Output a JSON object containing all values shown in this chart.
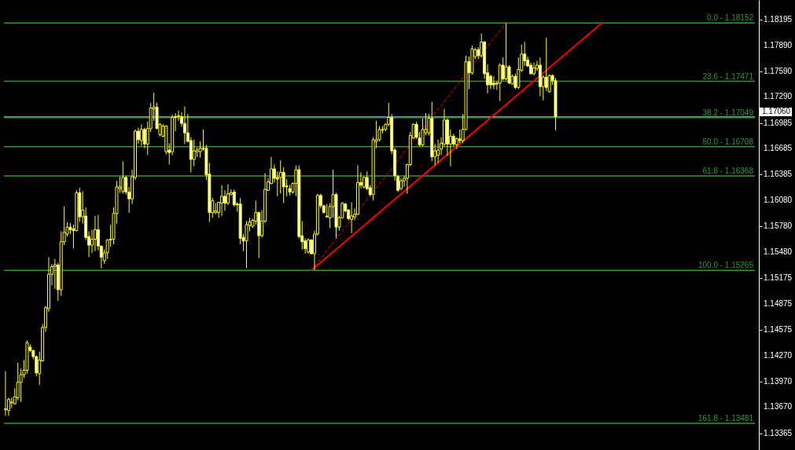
{
  "chart_data": {
    "type": "candlestick",
    "categories": [
      null,
      null,
      null,
      null,
      null,
      null,
      null,
      null,
      null,
      null,
      null,
      null,
      null,
      null,
      null,
      null,
      null,
      null,
      null,
      null,
      null,
      null,
      null,
      null,
      null,
      null,
      null,
      null,
      null,
      null,
      null,
      null,
      null,
      null,
      null,
      null,
      null,
      null,
      null,
      null,
      null,
      null,
      null,
      null,
      null,
      null,
      null,
      null,
      null,
      null,
      null,
      null,
      null,
      null,
      null,
      null,
      null,
      null,
      null,
      null,
      null,
      null,
      null,
      null,
      null,
      null,
      null,
      null,
      null,
      null,
      null,
      null,
      null,
      null,
      null,
      null,
      null,
      null,
      null,
      null,
      null,
      null,
      null,
      null,
      null,
      null,
      null,
      null,
      null,
      null,
      null,
      null,
      null,
      null,
      null,
      null,
      null,
      null,
      null,
      null,
      null,
      null,
      null,
      null,
      null,
      null,
      null,
      null,
      null,
      null,
      null,
      null,
      null,
      null,
      null,
      null,
      null,
      null,
      null,
      null,
      null,
      null,
      null,
      null,
      null,
      null,
      null,
      null,
      null,
      null,
      null,
      null,
      null,
      null,
      null,
      null,
      null,
      null,
      null,
      null,
      null,
      null,
      null,
      null,
      null,
      null,
      null,
      null,
      null,
      null,
      null,
      null,
      null,
      null,
      null,
      null,
      null,
      null,
      null,
      null,
      null,
      null,
      null,
      null,
      null,
      null,
      null,
      null,
      null,
      null,
      null,
      null,
      null,
      null,
      null,
      null,
      null,
      null,
      null,
      null,
      null,
      null,
      null,
      null,
      null,
      null,
      null,
      null,
      null,
      null,
      null,
      null,
      null,
      null,
      null,
      null,
      null,
      null,
      null,
      null,
      null,
      null,
      null,
      null,
      null,
      null,
      null,
      null,
      null,
      null,
      null,
      null,
      null,
      null,
      null,
      null,
      null,
      null,
      null,
      null,
      null,
      null,
      null,
      null,
      null,
      null,
      null,
      null,
      null,
      null,
      null,
      null,
      null,
      null,
      null,
      null,
      null,
      null,
      null,
      null,
      null,
      null,
      null
    ],
    "ohlc": [
      [
        1.1364,
        1.1409,
        1.1357,
        1.1365
      ],
      [
        1.1363,
        1.1378,
        1.1357,
        1.1376
      ],
      [
        1.1372,
        1.1378,
        1.1366,
        1.1373
      ],
      [
        1.1371,
        1.1389,
        1.137,
        1.1379
      ],
      [
        1.1378,
        1.1419,
        1.1375,
        1.1396
      ],
      [
        1.1396,
        1.1412,
        1.1373,
        1.1405
      ],
      [
        1.1405,
        1.1422,
        1.1401,
        1.141
      ],
      [
        1.141,
        1.1445,
        1.1406,
        1.1442
      ],
      [
        1.1437,
        1.144,
        1.1431,
        1.1433
      ],
      [
        1.1433,
        1.1434,
        1.1423,
        1.1426
      ],
      [
        1.1426,
        1.1427,
        1.1403,
        1.1407
      ],
      [
        1.1406,
        1.1432,
        1.1393,
        1.1422
      ],
      [
        1.1421,
        1.1464,
        1.142,
        1.146
      ],
      [
        1.146,
        1.1485,
        1.1455,
        1.1483
      ],
      [
        1.1482,
        1.1542,
        1.1478,
        1.1522
      ],
      [
        1.1522,
        1.1534,
        1.1509,
        1.1531
      ],
      [
        1.1531,
        1.154,
        1.1505,
        1.1533
      ],
      [
        1.1533,
        1.1535,
        1.1491,
        1.1504
      ],
      [
        1.1504,
        1.1572,
        1.1497,
        1.156
      ],
      [
        1.156,
        1.1601,
        1.1556,
        1.1571
      ],
      [
        1.1569,
        1.1583,
        1.1566,
        1.1577
      ],
      [
        1.1577,
        1.1582,
        1.1569,
        1.1574
      ],
      [
        1.1575,
        1.158,
        1.1552,
        1.1573
      ],
      [
        1.1573,
        1.162,
        1.1572,
        1.1617
      ],
      [
        1.1617,
        1.1623,
        1.1583,
        1.1589
      ],
      [
        1.1589,
        1.1619,
        1.1581,
        1.1597
      ],
      [
        1.159,
        1.16,
        1.1562,
        1.1565
      ],
      [
        1.1566,
        1.1572,
        1.1542,
        1.1556
      ],
      [
        1.1556,
        1.1574,
        1.1547,
        1.1563
      ],
      [
        1.1563,
        1.159,
        1.1549,
        1.1574
      ],
      [
        1.1574,
        1.1591,
        1.155,
        1.1555
      ],
      [
        1.1555,
        1.1555,
        1.1529,
        1.1542
      ],
      [
        1.1538,
        1.1551,
        1.1534,
        1.1547
      ],
      [
        1.1547,
        1.1563,
        1.154,
        1.1562
      ],
      [
        1.1562,
        1.158,
        1.1554,
        1.1563
      ],
      [
        1.1563,
        1.16,
        1.1557,
        1.1593
      ],
      [
        1.1593,
        1.1631,
        1.1581,
        1.1624
      ],
      [
        1.1622,
        1.1636,
        1.1617,
        1.1624
      ],
      [
        1.1619,
        1.1654,
        1.1616,
        1.1635
      ],
      [
        1.1635,
        1.1637,
        1.1615,
        1.1618
      ],
      [
        1.1618,
        1.1624,
        1.1594,
        1.161
      ],
      [
        1.161,
        1.1644,
        1.1604,
        1.1636
      ],
      [
        1.1635,
        1.1691,
        1.1632,
        1.1689
      ],
      [
        1.1689,
        1.1693,
        1.1674,
        1.1679
      ],
      [
        1.1678,
        1.1697,
        1.1672,
        1.1691
      ],
      [
        1.1691,
        1.1693,
        1.1669,
        1.1674
      ],
      [
        1.1674,
        1.17,
        1.1661,
        1.1692
      ],
      [
        1.1692,
        1.1722,
        1.1688,
        1.1716
      ],
      [
        1.1715,
        1.1734,
        1.1701,
        1.1717
      ],
      [
        1.1717,
        1.1722,
        1.1691,
        1.1692
      ],
      [
        1.1685,
        1.1698,
        1.1683,
        1.1697
      ],
      [
        1.1683,
        1.1697,
        1.1682,
        1.1695
      ],
      [
        1.1665,
        1.1696,
        1.1662,
        1.1695
      ],
      [
        1.1667,
        1.1675,
        1.165,
        1.1664
      ],
      [
        1.1665,
        1.1708,
        1.1661,
        1.1705
      ],
      [
        1.1705,
        1.171,
        1.1689,
        1.1706
      ],
      [
        1.1706,
        1.1713,
        1.1701,
        1.1707
      ],
      [
        1.1706,
        1.1711,
        1.1694,
        1.1698
      ],
      [
        1.1698,
        1.1718,
        1.1674,
        1.1687
      ],
      [
        1.1687,
        1.1709,
        1.1676,
        1.1677
      ],
      [
        1.1678,
        1.1682,
        1.1641,
        1.1656
      ],
      [
        1.1656,
        1.1679,
        1.1648,
        1.1666
      ],
      [
        1.1665,
        1.167,
        1.1659,
        1.1667
      ],
      [
        1.1665,
        1.1677,
        1.1658,
        1.1669
      ],
      [
        1.1669,
        1.1691,
        1.1666,
        1.1668
      ],
      [
        1.1669,
        1.1673,
        1.1632,
        1.1638
      ],
      [
        1.1639,
        1.1652,
        1.1583,
        1.1594
      ],
      [
        1.1594,
        1.1611,
        1.1588,
        1.1608
      ],
      [
        1.1594,
        1.1605,
        1.1592,
        1.1596
      ],
      [
        1.1594,
        1.1606,
        1.1588,
        1.1606
      ],
      [
        1.1605,
        1.1626,
        1.159,
        1.1613
      ],
      [
        1.1613,
        1.162,
        1.1596,
        1.1605
      ],
      [
        1.1605,
        1.1627,
        1.1603,
        1.1616
      ],
      [
        1.1615,
        1.1621,
        1.1614,
        1.1617
      ],
      [
        1.1618,
        1.1621,
        1.1601,
        1.1603
      ],
      [
        1.1604,
        1.1606,
        1.1595,
        1.1603
      ],
      [
        1.1604,
        1.1611,
        1.1557,
        1.1564
      ],
      [
        1.1565,
        1.1569,
        1.1549,
        1.1561
      ],
      [
        1.1561,
        1.1584,
        1.1529,
        1.158
      ],
      [
        1.1579,
        1.1588,
        1.1572,
        1.1583
      ],
      [
        1.1578,
        1.1587,
        1.1576,
        1.1585
      ],
      [
        1.1584,
        1.1608,
        1.158,
        1.1594
      ],
      [
        1.1594,
        1.1595,
        1.1541,
        1.1567
      ],
      [
        1.1567,
        1.1597,
        1.1565,
        1.1584
      ],
      [
        1.1584,
        1.164,
        1.1582,
        1.1621
      ],
      [
        1.162,
        1.1634,
        1.1619,
        1.163
      ],
      [
        1.1628,
        1.1659,
        1.1627,
        1.1645
      ],
      [
        1.1645,
        1.165,
        1.1629,
        1.1634
      ],
      [
        1.1635,
        1.1642,
        1.1613,
        1.1633
      ],
      [
        1.1635,
        1.1655,
        1.1616,
        1.1641
      ],
      [
        1.1641,
        1.1647,
        1.1605,
        1.1624
      ],
      [
        1.1625,
        1.1633,
        1.1613,
        1.1624
      ],
      [
        1.1622,
        1.1626,
        1.1614,
        1.1618
      ],
      [
        1.1618,
        1.1629,
        1.1616,
        1.1628
      ],
      [
        1.1628,
        1.1649,
        1.1613,
        1.1644
      ],
      [
        1.1644,
        1.1649,
        1.1564,
        1.1566
      ],
      [
        1.1567,
        1.1584,
        1.1551,
        1.156
      ],
      [
        1.1561,
        1.1564,
        1.1546,
        1.1552
      ],
      [
        1.1548,
        1.1564,
        1.1546,
        1.1562
      ],
      [
        1.1562,
        1.1563,
        1.1545,
        1.1546
      ],
      [
        1.1546,
        1.1573,
        1.1527,
        1.1569
      ],
      [
        1.1569,
        1.1616,
        1.1567,
        1.1614
      ],
      [
        1.1614,
        1.1616,
        1.1599,
        1.1602
      ],
      [
        1.1602,
        1.1603,
        1.1593,
        1.1594
      ],
      [
        1.159,
        1.1604,
        1.1589,
        1.1589
      ],
      [
        1.1588,
        1.1605,
        1.1576,
        1.1601
      ],
      [
        1.1601,
        1.1644,
        1.1588,
        1.1615
      ],
      [
        1.1615,
        1.1617,
        1.1564,
        1.1577
      ],
      [
        1.1577,
        1.159,
        1.1573,
        1.1588
      ],
      [
        1.1588,
        1.1606,
        1.1587,
        1.1605
      ],
      [
        1.1604,
        1.1605,
        1.1594,
        1.1596
      ],
      [
        1.1597,
        1.1598,
        1.1585,
        1.1587
      ],
      [
        1.1586,
        1.1606,
        1.157,
        1.159
      ],
      [
        1.1589,
        1.1599,
        1.1585,
        1.1592
      ],
      [
        1.1592,
        1.1649,
        1.1591,
        1.1629
      ],
      [
        1.1629,
        1.1641,
        1.1622,
        1.1626
      ],
      [
        1.1624,
        1.1636,
        1.1622,
        1.1635
      ],
      [
        1.1635,
        1.1642,
        1.162,
        1.1622
      ],
      [
        1.1623,
        1.1626,
        1.1613,
        1.1615
      ],
      [
        1.1615,
        1.1682,
        1.1608,
        1.1679
      ],
      [
        1.1677,
        1.1701,
        1.1669,
        1.1679
      ],
      [
        1.1679,
        1.1695,
        1.1677,
        1.1691
      ],
      [
        1.169,
        1.1695,
        1.1686,
        1.1691
      ],
      [
        1.1691,
        1.1698,
        1.1689,
        1.1697
      ],
      [
        1.1697,
        1.1722,
        1.1695,
        1.1705
      ],
      [
        1.1705,
        1.1709,
        1.1662,
        1.1666
      ],
      [
        1.1667,
        1.1669,
        1.1631,
        1.1637
      ],
      [
        1.1636,
        1.1638,
        1.1618,
        1.162
      ],
      [
        1.1622,
        1.1634,
        1.162,
        1.1631
      ],
      [
        1.1631,
        1.1637,
        1.1624,
        1.1634
      ],
      [
        1.1634,
        1.1651,
        1.1616,
        1.165
      ],
      [
        1.165,
        1.1688,
        1.1648,
        1.1684
      ],
      [
        1.1681,
        1.1698,
        1.168,
        1.1697
      ],
      [
        1.1697,
        1.17,
        1.168,
        1.1682
      ],
      [
        1.1681,
        1.1688,
        1.1671,
        1.1673
      ],
      [
        1.1673,
        1.1704,
        1.1671,
        1.1691
      ],
      [
        1.1687,
        1.171,
        1.1684,
        1.1691
      ],
      [
        1.1687,
        1.1709,
        1.1684,
        1.1704
      ],
      [
        1.1704,
        1.1723,
        1.1654,
        1.1659
      ],
      [
        1.1659,
        1.1674,
        1.1649,
        1.1666
      ],
      [
        1.1661,
        1.1679,
        1.1652,
        1.1667
      ],
      [
        1.1668,
        1.1682,
        1.1661,
        1.1675
      ],
      [
        1.1674,
        1.1715,
        1.1671,
        1.1702
      ],
      [
        1.1702,
        1.1704,
        1.166,
        1.1674
      ],
      [
        1.1674,
        1.1691,
        1.1648,
        1.1683
      ],
      [
        1.1683,
        1.1686,
        1.1671,
        1.1674
      ],
      [
        1.1673,
        1.1682,
        1.1668,
        1.168
      ],
      [
        1.168,
        1.1691,
        1.1675,
        1.1678
      ],
      [
        1.1678,
        1.1709,
        1.1675,
        1.1691
      ],
      [
        1.1691,
        1.1777,
        1.169,
        1.177
      ],
      [
        1.177,
        1.1776,
        1.1738,
        1.1757
      ],
      [
        1.1757,
        1.1789,
        1.1755,
        1.1785
      ],
      [
        1.1776,
        1.1786,
        1.1773,
        1.1784
      ],
      [
        1.1784,
        1.1787,
        1.1773,
        1.1777
      ],
      [
        1.1777,
        1.1803,
        1.1775,
        1.1793
      ],
      [
        1.1793,
        1.1794,
        1.175,
        1.1756
      ],
      [
        1.1757,
        1.1767,
        1.1733,
        1.1743
      ],
      [
        1.1753,
        1.1755,
        1.1738,
        1.1743
      ],
      [
        1.1745,
        1.1753,
        1.1738,
        1.1743
      ],
      [
        1.1745,
        1.1747,
        1.1737,
        1.1744
      ],
      [
        1.1745,
        1.1768,
        1.1724,
        1.1766
      ],
      [
        1.1766,
        1.1775,
        1.1748,
        1.175
      ],
      [
        1.175,
        1.1815,
        1.1748,
        1.1764
      ],
      [
        1.1764,
        1.1766,
        1.1744,
        1.1745
      ],
      [
        1.1744,
        1.1755,
        1.1743,
        1.1753
      ],
      [
        1.1753,
        1.1756,
        1.1738,
        1.174
      ],
      [
        1.174,
        1.1775,
        1.1738,
        1.1761
      ],
      [
        1.176,
        1.179,
        1.1758,
        1.1779
      ],
      [
        1.1779,
        1.1793,
        1.1765,
        1.1771
      ],
      [
        1.1772,
        1.1776,
        1.1764,
        1.1765
      ],
      [
        1.1766,
        1.1769,
        1.1755,
        1.1756
      ],
      [
        1.1756,
        1.1769,
        1.1754,
        1.1763
      ],
      [
        1.1762,
        1.1771,
        1.1759,
        1.1766
      ],
      [
        1.1766,
        1.1775,
        1.173,
        1.1741
      ],
      [
        1.1741,
        1.1754,
        1.1725,
        1.1752
      ],
      [
        1.1752,
        1.1798,
        1.1736,
        1.174
      ],
      [
        1.1735,
        1.1755,
        1.1734,
        1.1754
      ],
      [
        1.1754,
        1.1755,
        1.1743,
        1.1748
      ],
      [
        1.1748,
        1.1751,
        1.169,
        1.1706
      ],
      null,
      null,
      null,
      null,
      null,
      null,
      null,
      null,
      null,
      null,
      null,
      null,
      null,
      null,
      null,
      null,
      null,
      null,
      null,
      null,
      null,
      null,
      null,
      null,
      null,
      null,
      null,
      null,
      null,
      null,
      null,
      null,
      null,
      null,
      null,
      null,
      null,
      null,
      null,
      null,
      null,
      null,
      null,
      null,
      null,
      null,
      null,
      null,
      null,
      null,
      null,
      null,
      null,
      null,
      null,
      null,
      null,
      null,
      null,
      null,
      null,
      null,
      null,
      null
    ],
    "series": [
      {
        "type": "line",
        "color": "#ff0000",
        "values": [
          null,
          null,
          null,
          null,
          null,
          null,
          null,
          null,
          null,
          null,
          null,
          null,
          null,
          null,
          null,
          null,
          null,
          null,
          null,
          null,
          null,
          null,
          null,
          null,
          null,
          null,
          null,
          null,
          null,
          null,
          null,
          null,
          null,
          null,
          null,
          null,
          null,
          null,
          null,
          null,
          null,
          null,
          null,
          null,
          null,
          null,
          null,
          null,
          null,
          null,
          null,
          null,
          null,
          null,
          null,
          null,
          null,
          null,
          null,
          null,
          null,
          null,
          null,
          null,
          null,
          null,
          null,
          null,
          null,
          null,
          null,
          null,
          null,
          null,
          null,
          null,
          null,
          null,
          null,
          null,
          null,
          null,
          null,
          null,
          null,
          null,
          null,
          null,
          null,
          null,
          null,
          null,
          null,
          null,
          null,
          null,
          null,
          null,
          null,
          1.15265,
          null,
          null,
          null,
          null,
          null,
          null,
          null,
          null,
          null,
          null,
          null,
          null,
          null,
          null,
          null,
          null,
          null,
          null,
          null,
          null,
          null,
          null,
          null,
          null,
          null,
          null,
          null,
          null,
          null,
          null,
          null,
          null,
          null,
          null,
          null,
          null,
          null,
          null,
          null,
          null,
          null,
          null,
          null,
          null,
          null,
          null,
          null,
          null,
          null,
          null,
          null,
          null,
          null,
          null,
          null,
          null,
          null,
          null,
          null,
          null,
          null,
          null,
          null,
          null,
          null,
          null,
          null,
          null,
          null,
          null,
          null,
          null,
          null,
          null,
          null,
          null,
          null,
          null,
          null,
          null,
          null,
          null,
          null,
          null,
          null,
          null,
          null,
          null,
          null,
          null,
          null,
          null,
          null,
          1.18152,
          null,
          null,
          null,
          null,
          null,
          null,
          null,
          null,
          null,
          null,
          null,
          null,
          null,
          null,
          null,
          null,
          null,
          null,
          null,
          null,
          null,
          null,
          null,
          null,
          null,
          null,
          null,
          null,
          null,
          null,
          null,
          null,
          null,
          null,
          null,
          null,
          null,
          null,
          null,
          null,
          null,
          null,
          null,
          null,
          null,
          null,
          null,
          null,
          null
        ]
      },
      {
        "type": "line",
        "color": "#ff0000",
        "line_style": "dashed",
        "values": [
          null,
          null,
          null,
          null,
          null,
          null,
          null,
          null,
          null,
          null,
          null,
          null,
          null,
          null,
          null,
          null,
          null,
          null,
          null,
          null,
          null,
          null,
          null,
          null,
          null,
          null,
          null,
          null,
          null,
          null,
          null,
          null,
          null,
          null,
          null,
          null,
          null,
          null,
          null,
          null,
          null,
          null,
          null,
          null,
          null,
          null,
          null,
          null,
          null,
          null,
          null,
          null,
          null,
          null,
          null,
          null,
          null,
          null,
          null,
          null,
          null,
          null,
          null,
          null,
          null,
          null,
          null,
          null,
          null,
          null,
          null,
          null,
          null,
          null,
          null,
          null,
          null,
          null,
          null,
          null,
          null,
          null,
          null,
          null,
          null,
          null,
          null,
          null,
          null,
          null,
          null,
          null,
          null,
          null,
          null,
          null,
          null,
          null,
          null,
          1.15265,
          null,
          null,
          null,
          null,
          null,
          null,
          null,
          null,
          null,
          null,
          null,
          null,
          null,
          null,
          null,
          null,
          null,
          null,
          null,
          null,
          null,
          null,
          null,
          null,
          null,
          null,
          null,
          null,
          null,
          null,
          null,
          null,
          null,
          null,
          null,
          null,
          null,
          null,
          null,
          null,
          null,
          null,
          null,
          null,
          null,
          null,
          null,
          null,
          null,
          null,
          null,
          null,
          null,
          null,
          null,
          null,
          null,
          null,
          null,
          null,
          null,
          null,
          1.18152,
          null,
          null,
          null,
          null,
          null,
          null,
          null,
          null,
          null,
          null,
          null,
          null,
          null,
          null,
          null,
          null,
          null,
          null,
          null,
          null,
          null,
          null,
          null,
          null,
          null,
          null,
          null,
          null,
          null,
          null,
          null,
          null,
          null,
          null,
          null,
          null,
          null,
          null,
          null,
          null,
          null,
          null,
          null,
          null,
          null,
          null,
          null,
          null,
          null,
          null,
          null,
          null,
          null,
          null,
          null,
          null,
          null,
          null,
          null,
          null,
          null,
          null,
          null,
          null,
          null,
          null,
          null,
          null,
          null,
          null,
          null,
          null,
          null,
          null,
          null,
          null,
          null,
          null,
          null,
          null
        ]
      }
    ],
    "ylim": [
      1.1317,
      1.1842
    ],
    "yticks": [
      1.18195,
      {
        "value": 1.1789,
        "label": "1.17890"
      },
      {
        "value": 1.1759,
        "label": "1.17590"
      },
      {
        "value": 1.1729,
        "label": "1.17290"
      },
      1.16985,
      1.16685,
      1.16385,
      {
        "value": 1.1608,
        "label": "1.16080"
      },
      {
        "value": 1.1578,
        "label": "1.15780"
      },
      {
        "value": 1.1548,
        "label": "1.15480"
      },
      1.15175,
      1.14875,
      1.14575,
      {
        "value": 1.1427,
        "label": "1.14270"
      },
      {
        "value": 1.1397,
        "label": "1.13970"
      },
      {
        "value": 1.1367,
        "label": "1.13670"
      },
      1.13365
    ],
    "tick_labels": "y",
    "ref_lines": [
      {
        "axis": "y",
        "value": 1.18152,
        "color": "#2e9a2e"
      },
      {
        "axis": "y",
        "value": 1.17471,
        "color": "#2e9a2e"
      },
      {
        "axis": "y",
        "value": 1.17049,
        "color": "#2e9a2e"
      },
      {
        "axis": "y",
        "value": 1.16708,
        "color": "#2e9a2e"
      },
      {
        "axis": "y",
        "value": 1.16368,
        "color": "#2e9a2e"
      },
      {
        "axis": "y",
        "value": 1.15265,
        "color": "#2e9a2e"
      },
      {
        "axis": "y",
        "value": 1.13481,
        "color": "#2e9a2e"
      },
      {
        "axis": "y",
        "value": 1.1706,
        "label": "1.17060",
        "color": "#8a94a6"
      }
    ],
    "annotations": [
      {
        "text": "0.0 - 1.18152",
        "y": 1.18152
      },
      {
        "text": "23.6 - 1.17471",
        "y": 1.17471
      },
      {
        "text": "38.2 - 1.17049",
        "y": 1.17049
      },
      {
        "text": "50.0 - 1.16708",
        "y": 1.16708
      },
      {
        "text": "61.8 - 1.16368",
        "y": 1.16368
      },
      {
        "text": "100.0 - 1.15265",
        "y": 1.15265
      },
      {
        "text": "161.8 - 1.13481",
        "y": 1.13481
      }
    ]
  }
}
